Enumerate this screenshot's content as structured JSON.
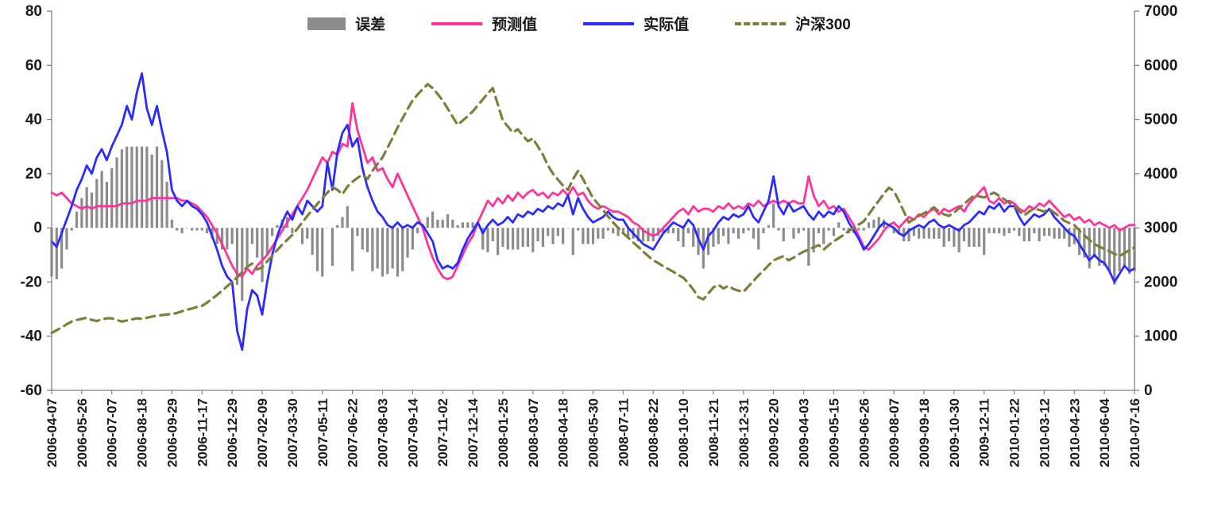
{
  "chart_data": {
    "type": "line",
    "title": "",
    "xlabel": "",
    "ylabel_left": "",
    "ylabel_right": "",
    "grid": false,
    "legend_position": "top-center",
    "left_axis": {
      "min": -60,
      "max": 80,
      "ticks": [
        80,
        60,
        40,
        20,
        0,
        -20,
        -40,
        -60
      ]
    },
    "right_axis": {
      "min": 0,
      "max": 7000,
      "ticks": [
        7000,
        6000,
        5000,
        4000,
        3000,
        2000,
        1000,
        0
      ]
    },
    "x_tick_labels": [
      "2006-04-07",
      "2006-05-26",
      "2006-07-07",
      "2006-08-18",
      "2006-09-29",
      "2006-11-17",
      "2006-12-29",
      "2007-02-09",
      "2007-03-30",
      "2007-05-11",
      "2007-06-22",
      "2007-08-03",
      "2007-09-14",
      "2007-11-02",
      "2007-12-14",
      "2008-01-25",
      "2008-03-07",
      "2008-04-18",
      "2008-05-30",
      "2008-07-11",
      "2008-08-22",
      "2008-10-10",
      "2008-11-21",
      "2008-12-31",
      "2009-02-20",
      "2009-04-03",
      "2009-05-15",
      "2009-06-26",
      "2009-08-07",
      "2009-09-18",
      "2009-10-30",
      "2009-12-11",
      "2010-01-22",
      "2010-03-12",
      "2010-04-23",
      "2010-06-04",
      "2010-07-16"
    ],
    "points_per_label": 6,
    "n_points": 217,
    "series": [
      {
        "name": "误差",
        "type": "bar",
        "axis": "left",
        "color": "#8c8c8c",
        "values": [
          -18,
          -19,
          -15,
          -8,
          -1,
          6,
          11,
          15,
          13,
          18,
          21,
          17,
          22,
          26,
          29,
          30,
          30,
          30,
          30,
          30,
          27,
          30,
          25,
          17,
          3,
          -1,
          -2,
          0,
          -1,
          -1,
          -1,
          -2,
          -4,
          -6,
          -8,
          -8,
          -6,
          -21,
          -27,
          -15,
          -6,
          -11,
          -20,
          -10,
          -3,
          1,
          3,
          4,
          -2,
          0,
          -6,
          -4,
          -10,
          -16,
          -18,
          0,
          -14,
          1,
          4,
          8,
          -16,
          -3,
          -8,
          -9,
          -16,
          -15,
          -18,
          -17,
          -15,
          -18,
          -16,
          -11,
          -8,
          -2,
          1,
          4,
          6,
          3,
          3,
          5,
          3,
          1,
          2,
          2,
          2,
          0,
          -8,
          -9,
          -5,
          -10,
          -7,
          -8,
          -8,
          -8,
          -7,
          -7,
          -9,
          -5,
          -7,
          -3,
          -6,
          -3,
          -6,
          0,
          -10,
          -1,
          -6,
          -6,
          -6,
          -4,
          -4,
          -1,
          -2,
          -3,
          -2,
          -4,
          -4,
          -5,
          -5,
          -5,
          -5,
          -3,
          -2,
          -2,
          -2,
          -5,
          -7,
          -2,
          -7,
          -10,
          -15,
          -10,
          -7,
          -6,
          -3,
          -6,
          -2,
          -4,
          -2,
          -1,
          -4,
          -8,
          -2,
          1,
          9,
          -1,
          -5,
          0,
          -4,
          -2,
          -1,
          -14,
          -9,
          -2,
          -6,
          -1,
          -3,
          2,
          -1,
          -2,
          -2,
          -1,
          -1,
          2,
          3,
          4,
          3,
          0,
          -2,
          -2,
          -5,
          -5,
          -3,
          -4,
          -4,
          -4,
          -4,
          -4,
          -7,
          -5,
          -7,
          -9,
          -5,
          -7,
          -7,
          -7,
          -10,
          -2,
          -2,
          -2,
          -3,
          -2,
          -1,
          -3,
          -5,
          -5,
          -2,
          -5,
          -3,
          -3,
          -4,
          -4,
          -4,
          -7,
          -6,
          -10,
          -11,
          -15,
          -11,
          -14,
          -14,
          -16,
          -21,
          -16,
          -14,
          -17,
          -16
        ]
      },
      {
        "name": "预测值",
        "type": "line",
        "axis": "left",
        "color": "#ff3399",
        "values": [
          13,
          12,
          13,
          11,
          9,
          8,
          7,
          8,
          7,
          8,
          8,
          8,
          8,
          8,
          9,
          9,
          9,
          10,
          10,
          10,
          11,
          11,
          11,
          11,
          11,
          11,
          10,
          10,
          9,
          8,
          6,
          4,
          1,
          -2,
          -6,
          -10,
          -14,
          -17,
          -18,
          -15,
          -17,
          -14,
          -12,
          -10,
          -7,
          -4,
          -1,
          2,
          5,
          8,
          11,
          14,
          18,
          22,
          26,
          24,
          28,
          27,
          31,
          30,
          46,
          36,
          30,
          24,
          26,
          21,
          22,
          18,
          15,
          20,
          16,
          12,
          8,
          4,
          0,
          -6,
          -11,
          -15,
          -18,
          -19,
          -18,
          -14,
          -10,
          -6,
          -3,
          2,
          6,
          10,
          8,
          11,
          9,
          12,
          10,
          13,
          11,
          13,
          14,
          12,
          13,
          11,
          13,
          12,
          14,
          12,
          15,
          12,
          13,
          10,
          8,
          7,
          8,
          7,
          6,
          6,
          5,
          4,
          2,
          1,
          -1,
          -2,
          -3,
          -2,
          0,
          2,
          4,
          6,
          7,
          5,
          8,
          6,
          7,
          7,
          6,
          8,
          7,
          9,
          7,
          8,
          7,
          9,
          8,
          10,
          8,
          9,
          10,
          9,
          10,
          9,
          10,
          9,
          9,
          19,
          12,
          8,
          10,
          7,
          8,
          6,
          7,
          4,
          1,
          -3,
          -7,
          -8,
          -6,
          -4,
          -1,
          1,
          2,
          0,
          2,
          4,
          3,
          5,
          4,
          6,
          7,
          5,
          7,
          6,
          7,
          8,
          6,
          9,
          11,
          13,
          15,
          10,
          9,
          11,
          9,
          10,
          9,
          7,
          6,
          8,
          7,
          9,
          8,
          10,
          8,
          6,
          4,
          5,
          3,
          4,
          2,
          3,
          1,
          2,
          1,
          0,
          1,
          -1,
          0,
          1,
          1
        ]
      },
      {
        "name": "实际值",
        "type": "line",
        "axis": "left",
        "color": "#2b2bff",
        "values": [
          -5,
          -7,
          -2,
          3,
          8,
          14,
          18,
          23,
          20,
          26,
          29,
          25,
          30,
          34,
          38,
          45,
          40,
          50,
          57,
          44,
          38,
          45,
          36,
          28,
          14,
          10,
          8,
          10,
          8,
          7,
          5,
          2,
          -3,
          -8,
          -14,
          -18,
          -20,
          -38,
          -45,
          -30,
          -23,
          -25,
          -32,
          -20,
          -10,
          -3,
          2,
          6,
          3,
          8,
          5,
          10,
          8,
          6,
          8,
          24,
          14,
          28,
          35,
          38,
          30,
          33,
          22,
          15,
          10,
          6,
          4,
          1,
          0,
          2,
          0,
          1,
          0,
          2,
          1,
          -2,
          -5,
          -12,
          -15,
          -14,
          -15,
          -13,
          -8,
          -4,
          -1,
          2,
          -2,
          1,
          3,
          1,
          2,
          4,
          2,
          5,
          4,
          6,
          5,
          7,
          6,
          8,
          7,
          9,
          8,
          12,
          5,
          11,
          7,
          4,
          2,
          3,
          4,
          6,
          4,
          3,
          3,
          0,
          -2,
          -4,
          -6,
          -7,
          -8,
          -5,
          -2,
          0,
          2,
          1,
          0,
          3,
          1,
          -4,
          -8,
          -3,
          -1,
          2,
          4,
          3,
          5,
          4,
          5,
          8,
          4,
          2,
          6,
          10,
          19,
          8,
          5,
          9,
          6,
          7,
          8,
          5,
          3,
          6,
          4,
          6,
          5,
          8,
          6,
          2,
          -1,
          -4,
          -8,
          -6,
          -3,
          0,
          2,
          1,
          0,
          -2,
          -3,
          -1,
          0,
          1,
          0,
          2,
          3,
          1,
          0,
          1,
          0,
          -1,
          1,
          2,
          4,
          6,
          5,
          8,
          7,
          9,
          6,
          8,
          8,
          4,
          1,
          3,
          5,
          4,
          5,
          7,
          4,
          2,
          0,
          -2,
          -3,
          -6,
          -9,
          -12,
          -10,
          -12,
          -13,
          -16,
          -20,
          -17,
          -14,
          -16,
          -15
        ]
      },
      {
        "name": "沪深300",
        "type": "line",
        "dashed": true,
        "axis": "right",
        "color": "#7e7e38",
        "values": [
          1060,
          1110,
          1160,
          1220,
          1270,
          1300,
          1320,
          1340,
          1300,
          1280,
          1310,
          1330,
          1330,
          1300,
          1270,
          1290,
          1310,
          1330,
          1320,
          1340,
          1360,
          1380,
          1390,
          1400,
          1410,
          1430,
          1460,
          1490,
          1510,
          1540,
          1560,
          1620,
          1690,
          1760,
          1840,
          1920,
          2000,
          2090,
          2180,
          2280,
          2340,
          2230,
          2270,
          2380,
          2480,
          2590,
          2690,
          2780,
          2870,
          2980,
          3100,
          3220,
          3330,
          3440,
          3550,
          3650,
          3750,
          3700,
          3620,
          3760,
          3850,
          3920,
          3980,
          3900,
          4050,
          4180,
          4300,
          4480,
          4660,
          4850,
          5020,
          5190,
          5350,
          5460,
          5560,
          5650,
          5580,
          5470,
          5350,
          5200,
          5050,
          4900,
          4980,
          5060,
          5150,
          5260,
          5370,
          5480,
          5580,
          5280,
          4980,
          4870,
          4760,
          4820,
          4700,
          4600,
          4650,
          4500,
          4350,
          4150,
          4000,
          3890,
          3780,
          3700,
          3900,
          4050,
          3900,
          3720,
          3550,
          3440,
          3330,
          3210,
          3100,
          3000,
          2900,
          2820,
          2730,
          2650,
          2560,
          2480,
          2400,
          2350,
          2290,
          2240,
          2190,
          2130,
          2080,
          1980,
          1860,
          1720,
          1680,
          1790,
          1900,
          1950,
          1880,
          1930,
          1870,
          1840,
          1820,
          1920,
          2020,
          2120,
          2210,
          2310,
          2400,
          2440,
          2480,
          2400,
          2450,
          2510,
          2560,
          2600,
          2640,
          2680,
          2600,
          2680,
          2750,
          2810,
          2870,
          2940,
          3000,
          3060,
          3120,
          3250,
          3380,
          3500,
          3630,
          3740,
          3680,
          3500,
          3300,
          3100,
          3160,
          3220,
          3270,
          3320,
          3380,
          3300,
          3250,
          3220,
          3280,
          3360,
          3440,
          3520,
          3600,
          3580,
          3560,
          3610,
          3650,
          3590,
          3530,
          3460,
          3400,
          3310,
          3230,
          3300,
          3360,
          3330,
          3300,
          3350,
          3280,
          3210,
          3130,
          3090,
          3050,
          2950,
          2860,
          2780,
          2700,
          2650,
          2610,
          2570,
          2520,
          2480,
          2530,
          2590,
          2640
        ]
      }
    ]
  }
}
